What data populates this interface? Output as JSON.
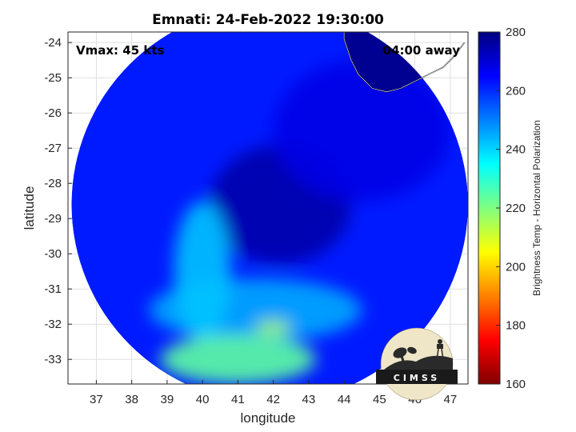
{
  "chart_data": {
    "type": "heatmap",
    "title": "Emnati: 24-Feb-2022 19:30:00",
    "xlabel": "longitude",
    "ylabel": "latitude",
    "xlim": [
      36.2,
      47.5
    ],
    "ylim": [
      -33.7,
      -23.7
    ],
    "xticks": [
      37,
      38,
      39,
      40,
      41,
      42,
      43,
      44,
      45,
      46,
      47
    ],
    "yticks": [
      -24,
      -25,
      -26,
      -27,
      -28,
      -29,
      -30,
      -31,
      -32,
      -33
    ],
    "grid": true,
    "annotations": {
      "vmax": "Vmax: 45 kts",
      "time_offset": "04:00 away"
    },
    "colorbar": {
      "label": "Brightness Temp - Horizontal Polarization",
      "range": [
        160,
        280
      ],
      "ticks": [
        280,
        260,
        240,
        220,
        200,
        180,
        160
      ],
      "colormap": [
        "#800000",
        "#ff0000",
        "#ff8000",
        "#ffff00",
        "#80ff80",
        "#00ffff",
        "#0080ff",
        "#0000ff",
        "#000080"
      ]
    },
    "swath_center": [
      41.9,
      -28.6
    ],
    "swath_radius_deg": 5.6,
    "field_regions": [
      {
        "name": "eye-core",
        "center": [
          42.2,
          -28.6
        ],
        "radius": [
          2.0,
          1.7
        ],
        "value": 275
      },
      {
        "name": "northeast-warm",
        "center": [
          44.5,
          -26.5
        ],
        "radius": [
          2.5,
          2.0
        ],
        "value": 268
      },
      {
        "name": "south-band",
        "center": [
          41.5,
          -31.6
        ],
        "radius": [
          3.0,
          0.9
        ],
        "value": 245
      },
      {
        "name": "west-band",
        "center": [
          40.0,
          -30.5
        ],
        "radius": [
          0.8,
          2.0
        ],
        "value": 242
      },
      {
        "name": "south-rain",
        "center": [
          41.0,
          -33.0
        ],
        "radius": [
          2.2,
          0.7
        ],
        "value": 224
      },
      {
        "name": "cell-42",
        "center": [
          42.0,
          -32.1
        ],
        "radius": [
          0.5,
          0.2
        ],
        "value": 215
      }
    ],
    "land_value": 278,
    "coastline_lon": [
      44.0,
      44.0,
      44.1,
      44.2,
      44.3,
      44.4,
      44.6,
      44.8,
      45.2,
      45.6,
      46.0,
      46.4,
      46.8,
      47.1,
      47.4
    ],
    "coastline_lat": [
      -23.7,
      -23.9,
      -24.2,
      -24.5,
      -24.7,
      -24.9,
      -25.1,
      -25.3,
      -25.4,
      -25.3,
      -25.1,
      -24.9,
      -24.7,
      -24.4,
      -24.0
    ],
    "logo_text": "CIMSS"
  }
}
